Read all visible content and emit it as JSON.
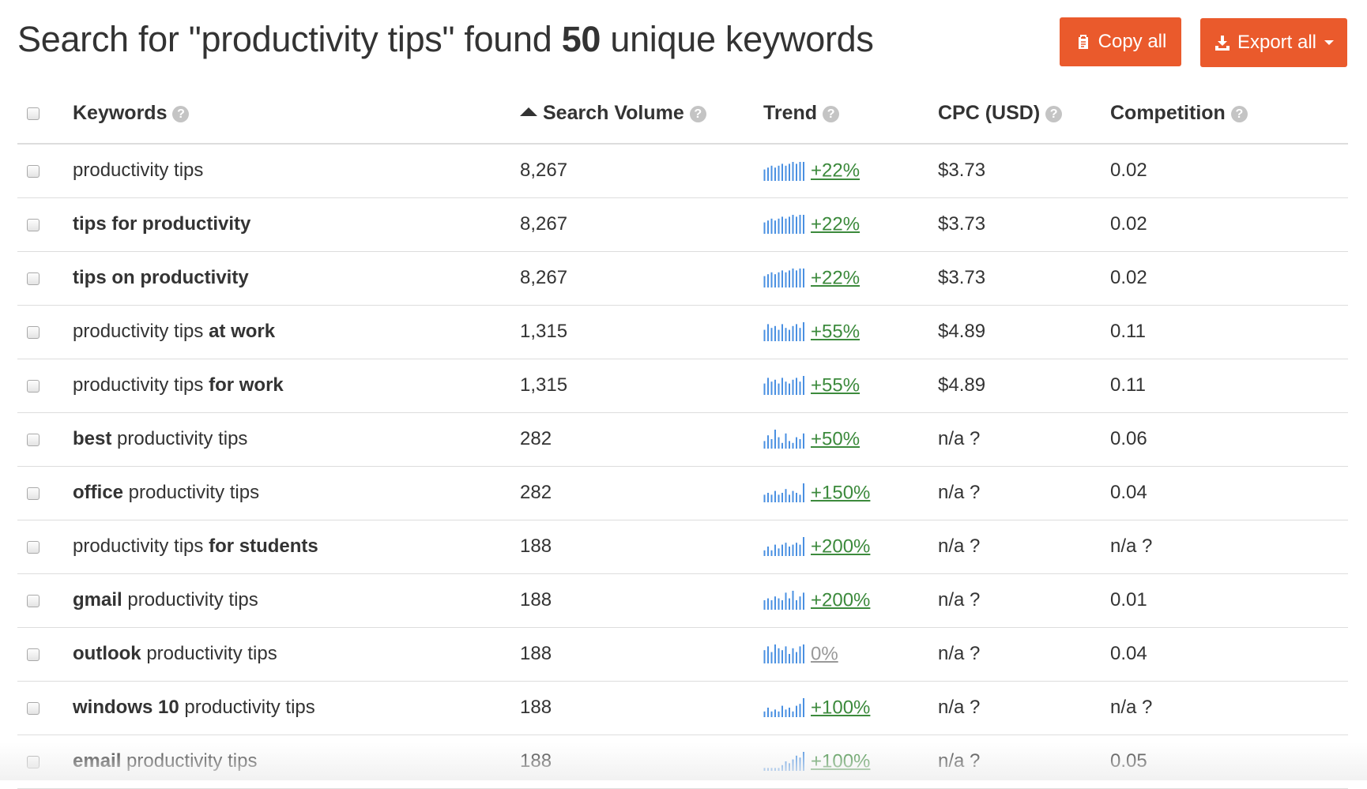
{
  "header": {
    "title_prefix": "Search for \"productivity tips\" found ",
    "title_count": "50",
    "title_suffix": " unique keywords",
    "copy_label": "Copy all",
    "export_label": "Export all"
  },
  "columns": {
    "keywords": "Keywords",
    "search_volume": "Search Volume",
    "trend": "Trend",
    "cpc": "CPC (USD)",
    "competition": "Competition",
    "help_glyph": "?"
  },
  "colors": {
    "accent": "#ea5a2c",
    "sparkline": "#4a90e2",
    "trend_positive": "#3c8a3c",
    "muted": "#999999"
  },
  "rows": [
    {
      "keyword": [
        {
          "t": "productivity tips",
          "b": false
        }
      ],
      "volume": "8,267",
      "trend": "+22%",
      "trend_levels": [
        0.6,
        0.7,
        0.8,
        0.7,
        0.8,
        0.9,
        0.8,
        0.9,
        1,
        0.9,
        1,
        1
      ],
      "cpc": "$3.73",
      "competition": "0.02"
    },
    {
      "keyword": [
        {
          "t": "tips for productivity",
          "b": true
        }
      ],
      "volume": "8,267",
      "trend": "+22%",
      "trend_levels": [
        0.6,
        0.7,
        0.8,
        0.7,
        0.8,
        0.9,
        0.8,
        0.9,
        1,
        0.9,
        1,
        1
      ],
      "cpc": "$3.73",
      "competition": "0.02"
    },
    {
      "keyword": [
        {
          "t": "tips on productivity",
          "b": true
        }
      ],
      "volume": "8,267",
      "trend": "+22%",
      "trend_levels": [
        0.6,
        0.7,
        0.8,
        0.7,
        0.8,
        0.9,
        0.8,
        0.9,
        1,
        0.9,
        1,
        1
      ],
      "cpc": "$3.73",
      "competition": "0.02"
    },
    {
      "keyword": [
        {
          "t": "productivity tips ",
          "b": false
        },
        {
          "t": "at work",
          "b": true
        }
      ],
      "volume": "1,315",
      "trend": "+55%",
      "trend_levels": [
        0.6,
        0.9,
        0.7,
        0.8,
        0.6,
        0.9,
        0.7,
        0.6,
        0.8,
        0.9,
        0.7,
        1
      ],
      "cpc": "$4.89",
      "competition": "0.11"
    },
    {
      "keyword": [
        {
          "t": "productivity tips ",
          "b": false
        },
        {
          "t": "for work",
          "b": true
        }
      ],
      "volume": "1,315",
      "trend": "+55%",
      "trend_levels": [
        0.6,
        0.9,
        0.7,
        0.8,
        0.6,
        0.9,
        0.7,
        0.6,
        0.8,
        0.9,
        0.7,
        1
      ],
      "cpc": "$4.89",
      "competition": "0.11"
    },
    {
      "keyword": [
        {
          "t": "best",
          "b": true
        },
        {
          "t": " productivity tips",
          "b": false
        }
      ],
      "volume": "282",
      "trend": "+50%",
      "trend_levels": [
        0.4,
        0.7,
        0.5,
        1,
        0.6,
        0.3,
        0.8,
        0.4,
        0.3,
        0.6,
        0.5,
        0.8
      ],
      "cpc": "n/a ?",
      "competition": "0.06"
    },
    {
      "keyword": [
        {
          "t": "office",
          "b": true
        },
        {
          "t": " productivity tips",
          "b": false
        }
      ],
      "volume": "282",
      "trend": "+150%",
      "trend_levels": [
        0.4,
        0.5,
        0.4,
        0.6,
        0.4,
        0.5,
        0.7,
        0.4,
        0.6,
        0.5,
        0.4,
        1
      ],
      "cpc": "n/a ?",
      "competition": "0.04"
    },
    {
      "keyword": [
        {
          "t": "productivity tips ",
          "b": false
        },
        {
          "t": "for students",
          "b": true
        }
      ],
      "volume": "188",
      "trend": "+200%",
      "trend_levels": [
        0.3,
        0.5,
        0.3,
        0.6,
        0.4,
        0.6,
        0.7,
        0.5,
        0.6,
        0.7,
        0.6,
        1
      ],
      "cpc": "n/a ?",
      "competition": "n/a ?"
    },
    {
      "keyword": [
        {
          "t": "gmail",
          "b": true
        },
        {
          "t": " productivity tips",
          "b": false
        }
      ],
      "volume": "188",
      "trend": "+200%",
      "trend_levels": [
        0.5,
        0.6,
        0.5,
        0.7,
        0.6,
        0.5,
        0.9,
        0.6,
        1,
        0.5,
        0.7,
        0.9
      ],
      "cpc": "n/a ?",
      "competition": "0.01"
    },
    {
      "keyword": [
        {
          "t": "outlook",
          "b": true
        },
        {
          "t": " productivity tips",
          "b": false
        }
      ],
      "volume": "188",
      "trend": "0%",
      "trend_levels": [
        0.7,
        0.9,
        0.6,
        1,
        0.8,
        0.7,
        0.9,
        0.5,
        0.8,
        0.6,
        0.9,
        1
      ],
      "cpc": "n/a ?",
      "competition": "0.04"
    },
    {
      "keyword": [
        {
          "t": "windows 10",
          "b": true
        },
        {
          "t": " productivity tips",
          "b": false
        }
      ],
      "volume": "188",
      "trend": "+100%",
      "trend_levels": [
        0.3,
        0.5,
        0.3,
        0.4,
        0.3,
        0.6,
        0.4,
        0.5,
        0.3,
        0.6,
        0.7,
        1
      ],
      "cpc": "n/a ?",
      "competition": "n/a ?"
    },
    {
      "keyword": [
        {
          "t": "email",
          "b": true
        },
        {
          "t": " productivity tips",
          "b": false
        }
      ],
      "volume": "188",
      "trend": "+100%",
      "trend_levels": [
        0.15,
        0.15,
        0.15,
        0.15,
        0.15,
        0.3,
        0.5,
        0.4,
        0.6,
        0.8,
        0.7,
        1
      ],
      "cpc": "n/a ?",
      "competition": "0.05"
    }
  ]
}
